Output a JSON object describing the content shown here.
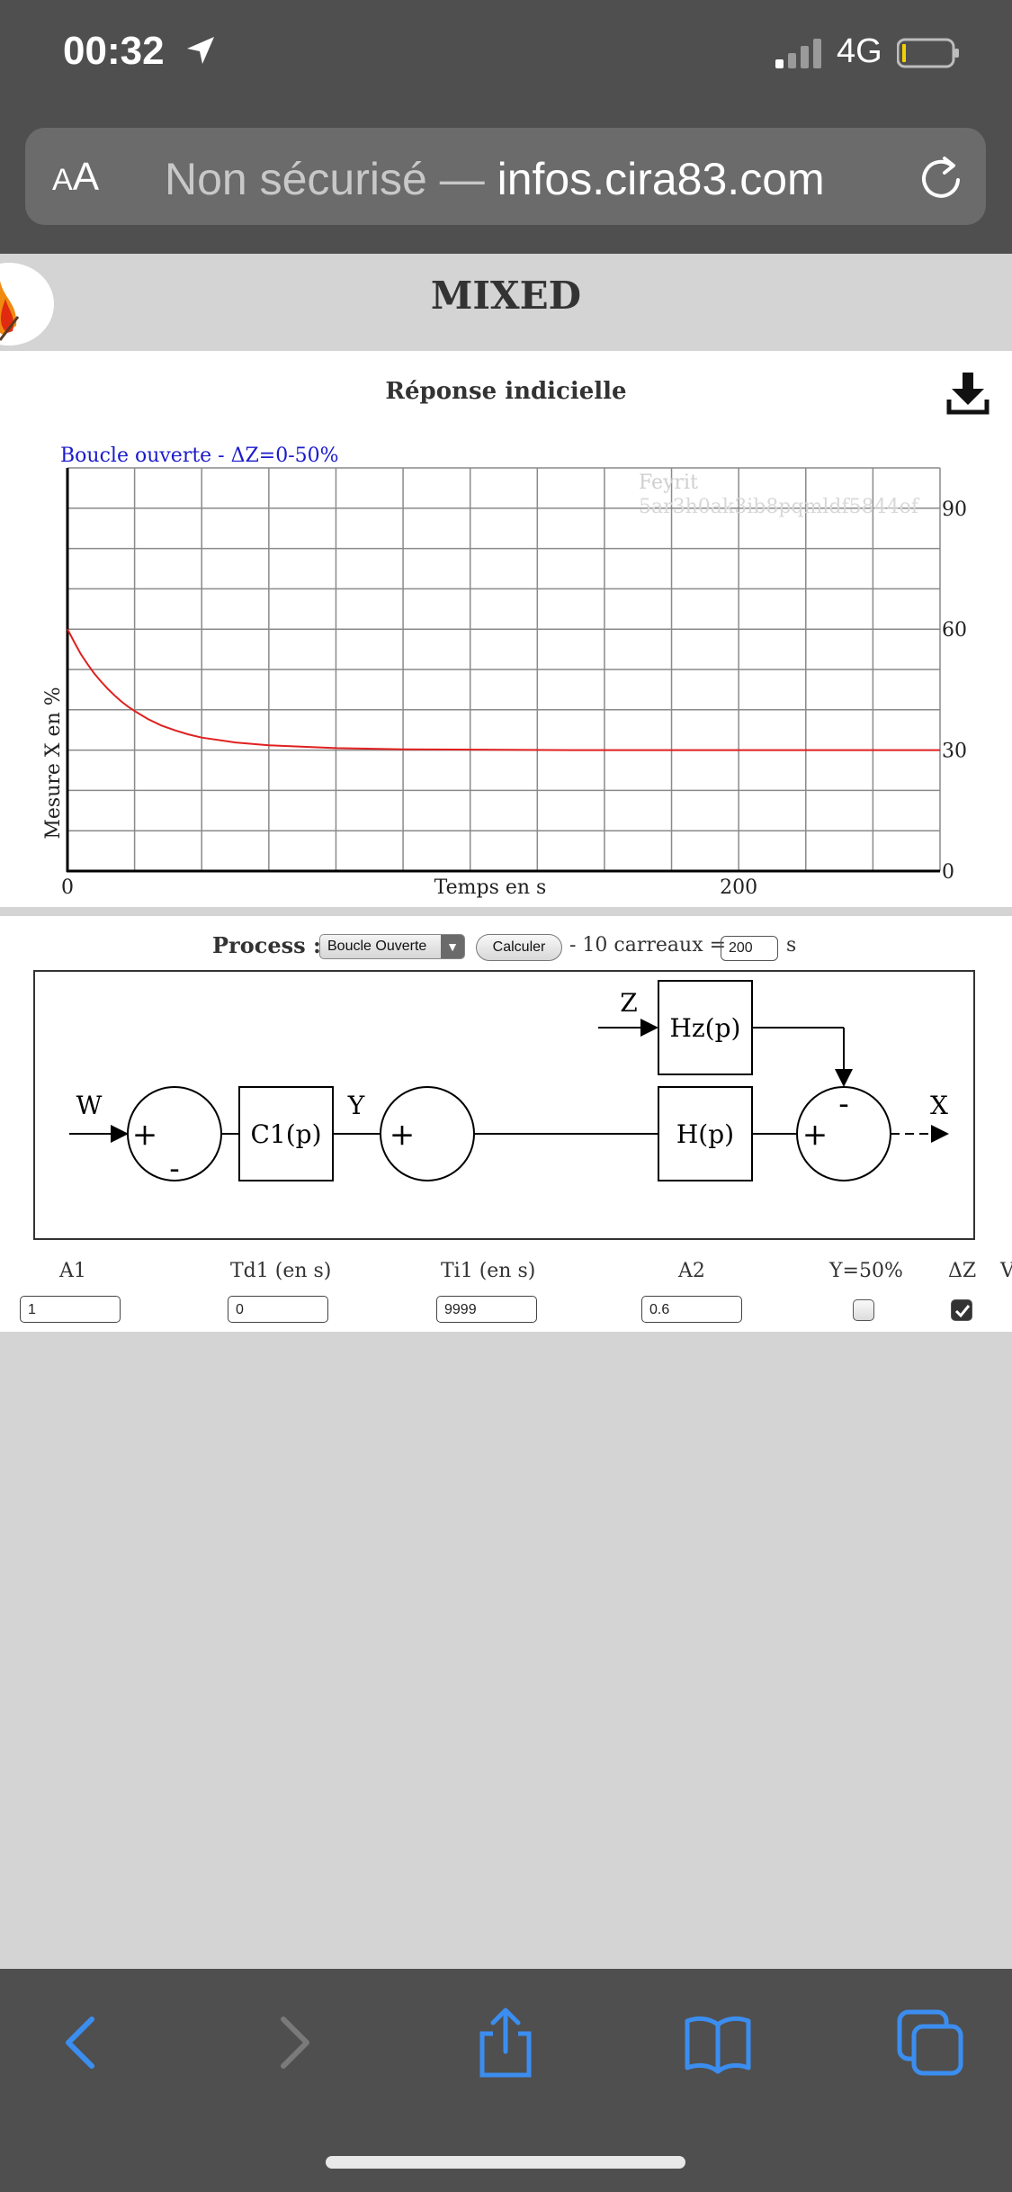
{
  "status_bar": {
    "time": "00:32",
    "network": "4G"
  },
  "browser": {
    "text_size_label_small": "A",
    "text_size_label_large": "A",
    "url_security": "Non sécurisé —",
    "url_domain": "infos.cira83.com"
  },
  "page": {
    "title": "MIXED"
  },
  "chart": {
    "panel_title": "Réponse indicielle",
    "watermark_line1": "Feyrit",
    "watermark_line2": "5ar3h0ak3ib8pqmldf5844of"
  },
  "chart_data": {
    "type": "line",
    "title": "Boucle ouverte - ΔZ=0-50%",
    "xlabel": "Temps en s",
    "ylabel": "Mesure X en %",
    "xlim": [
      0,
      260
    ],
    "ylim": [
      0,
      100
    ],
    "x_ticks": [
      0,
      200
    ],
    "y_ticks": [
      0,
      30,
      60,
      90
    ],
    "grid": true,
    "series": [
      {
        "color": "#e02020",
        "x": [
          0,
          2,
          4,
          6,
          8,
          10,
          12,
          14,
          16,
          18,
          20,
          24,
          28,
          32,
          36,
          40,
          50,
          60,
          80,
          100,
          150,
          200,
          260
        ],
        "y": [
          60,
          56.8,
          53.8,
          51.3,
          49.0,
          47.0,
          45.2,
          43.6,
          42.1,
          40.8,
          39.7,
          37.7,
          36.1,
          34.9,
          33.9,
          33.1,
          31.9,
          31.2,
          30.5,
          30.2,
          30.0,
          30.0,
          30.0
        ]
      }
    ]
  },
  "process": {
    "label": "Process :",
    "mode": "Boucle Ouverte",
    "calculate_label": "Calculer",
    "carreaux_label": "- 10 carreaux =",
    "carreaux_value": "200",
    "carreaux_unit": "s"
  },
  "diagram": {
    "W": "W",
    "Y": "Y",
    "Z": "Z",
    "X": "X",
    "plus": "+",
    "minus": "-",
    "c1": "C1(p)",
    "hz": "Hz(p)",
    "h": "H(p)"
  },
  "params": {
    "a1_label": "A1",
    "a1_value": "1",
    "td1_label": "Td1 (en s)",
    "td1_value": "0",
    "ti1_label": "Ti1 (en s)",
    "ti1_value": "9999",
    "a2_label": "A2",
    "a2_value": "0.6",
    "y50_label": "Y=50%",
    "dz_label": "ΔZ",
    "cut_label": "V"
  },
  "colors": {
    "chrome": "#4f4f4f",
    "accent_blue": "#3b8ef0",
    "curve": "#e02020",
    "legend_blue": "#1a1acc"
  },
  "toolbar": {
    "back": "chevron-left-icon",
    "forward": "chevron-right-icon",
    "share": "share-icon",
    "bookmarks": "book-icon",
    "tabs": "tabs-icon"
  }
}
